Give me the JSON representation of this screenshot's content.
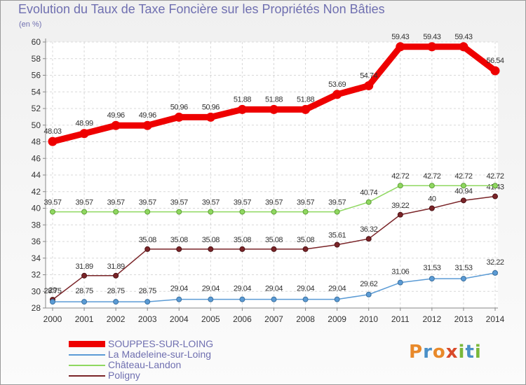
{
  "header": {
    "title": "Evolution du Taux de Taxe Foncière sur les Propriétés Non Bâties",
    "unit": "(en %)"
  },
  "logo": {
    "letters": [
      "P",
      "r",
      "o",
      "x",
      "i",
      "t",
      "i"
    ],
    "colors": [
      "#e8892a",
      "#4a90c8",
      "#e8892a",
      "#d94a2a",
      "#7ab83a",
      "#4a90c8",
      "#7ab83a"
    ]
  },
  "chart_data": {
    "type": "line",
    "title": "Evolution du Taux de Taxe Foncière sur les Propriétés Non Bâties",
    "ylabel": "(en %)",
    "ylim": [
      28,
      60
    ],
    "yticks": [
      28,
      30,
      32,
      34,
      36,
      38,
      40,
      42,
      44,
      46,
      48,
      50,
      52,
      54,
      56,
      58,
      60
    ],
    "grid": true,
    "legend_position": "bottom-left",
    "x": [
      "2000",
      "2001",
      "2002",
      "2003",
      "2004",
      "2005",
      "2006",
      "2007",
      "2008",
      "2009",
      "2010",
      "2011",
      "2012",
      "2013",
      "2014"
    ],
    "series": [
      {
        "name": "SOUPPES-SUR-LOING",
        "color": "#ee0000",
        "values": [
          48.03,
          48.99,
          49.96,
          49.96,
          50.96,
          50.96,
          51.88,
          51.88,
          51.88,
          53.69,
          54.74,
          59.43,
          59.43,
          59.43,
          56.54
        ],
        "labels": [
          "48.03",
          "48.99",
          "49.96",
          "49.96",
          "50.96",
          "50.96",
          "51.88",
          "51.88",
          "51.88",
          "53.69",
          "54.74",
          "59.43",
          "59.43",
          "59.43",
          "56.54"
        ]
      },
      {
        "name": "La Madeleine-sur-Loing",
        "color": "#5b9bd5",
        "values": [
          28.75,
          28.75,
          28.75,
          28.75,
          29.04,
          29.04,
          29.04,
          29.04,
          29.04,
          29.04,
          29.62,
          31.06,
          31.53,
          31.53,
          32.22
        ],
        "labels": [
          "28.75",
          "28.75",
          "28.75",
          "28.75",
          "29.04",
          "29.04",
          "29.04",
          "29.04",
          "29.04",
          "29.04",
          "29.62",
          "31.06",
          "31.53",
          "31.53",
          "32.22"
        ]
      },
      {
        "name": "Château-Landon",
        "color": "#8fd860",
        "values": [
          39.57,
          39.57,
          39.57,
          39.57,
          39.57,
          39.57,
          39.57,
          39.57,
          39.57,
          39.57,
          40.74,
          42.72,
          42.72,
          42.72,
          42.72
        ],
        "labels": [
          "39.57",
          "39.57",
          "39.57",
          "39.57",
          "39.57",
          "39.57",
          "39.57",
          "39.57",
          "39.57",
          "39.57",
          "40.74",
          "42.72",
          "42.72",
          "42.72",
          "42.72"
        ]
      },
      {
        "name": "Poligny",
        "color": "#7a2428",
        "values": [
          29,
          31.89,
          31.89,
          35.08,
          35.08,
          35.08,
          35.08,
          35.08,
          35.08,
          35.61,
          36.32,
          39.22,
          40,
          40.94,
          41.43
        ],
        "labels": [
          "29",
          "31.89",
          "31.89",
          "35.08",
          "35.08",
          "35.08",
          "35.08",
          "35.08",
          "35.08",
          "35.61",
          "36.32",
          "39.22",
          "40",
          "40.94",
          "41.43"
        ]
      }
    ]
  }
}
